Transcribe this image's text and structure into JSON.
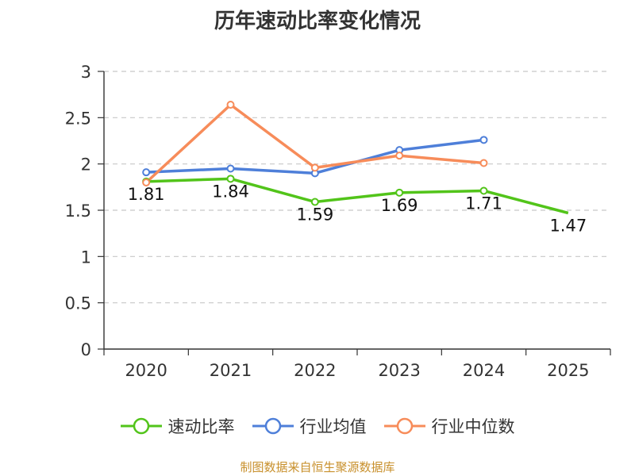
{
  "chart_data": {
    "type": "line",
    "title": "历年速动比率变化情况",
    "categories": [
      "2020",
      "2021",
      "2022",
      "2023",
      "2024",
      "2025"
    ],
    "ylim": [
      0,
      3
    ],
    "yticks": [
      "0",
      "0.5",
      "1",
      "1.5",
      "2",
      "2.5",
      "3"
    ],
    "grid": true,
    "legend_position": "bottom",
    "series": [
      {
        "name": "速动比率",
        "color": "#52c41a",
        "values": [
          1.81,
          1.84,
          1.59,
          1.69,
          1.71,
          1.47
        ],
        "labels": [
          "1.81",
          "1.84",
          "1.59",
          "1.69",
          "1.71",
          "1.47"
        ]
      },
      {
        "name": "行业均值",
        "color": "#4e7fd9",
        "values": [
          1.91,
          1.95,
          1.9,
          2.15,
          2.26,
          null
        ]
      },
      {
        "name": "行业中位数",
        "color": "#f78c5a",
        "values": [
          1.8,
          2.64,
          1.96,
          2.09,
          2.01,
          null
        ]
      }
    ]
  },
  "source": "制图数据来自恒生聚源数据库"
}
